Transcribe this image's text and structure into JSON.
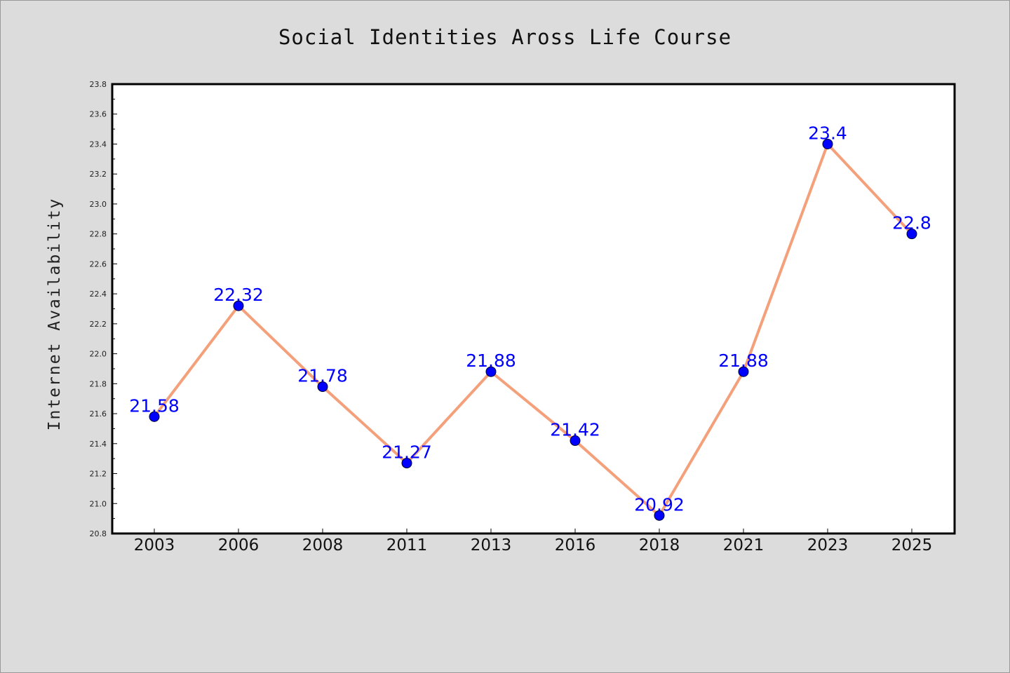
{
  "chart_data": {
    "type": "line",
    "title": "Social Identities Aross Life Course",
    "xlabel": "",
    "ylabel": "Internet Availability",
    "categories": [
      "2003",
      "2006",
      "2008",
      "2011",
      "2013",
      "2016",
      "2018",
      "2021",
      "2023",
      "2025"
    ],
    "values": [
      21.58,
      22.32,
      21.78,
      21.27,
      21.88,
      21.42,
      20.92,
      21.88,
      23.4,
      22.8
    ],
    "data_labels": [
      "21.58",
      "22.32",
      "21.78",
      "21.27",
      "21.88",
      "21.42",
      "20.92",
      "21.88",
      "23.4",
      "22.8"
    ],
    "yticks": [
      "20.8",
      "21.0",
      "21.2",
      "21.4",
      "21.6",
      "21.8",
      "22.0",
      "22.2",
      "22.4",
      "22.6",
      "22.8",
      "23.0",
      "23.2",
      "23.4",
      "23.6",
      "23.8"
    ],
    "ylim": [
      20.8,
      23.8
    ],
    "grid": false,
    "legend": "none",
    "colors": {
      "line": "#f4a07a",
      "marker": "#0000ff",
      "data_label": "#0000ff",
      "background": "#dcdcdc",
      "plot_background": "#ffffff"
    }
  }
}
